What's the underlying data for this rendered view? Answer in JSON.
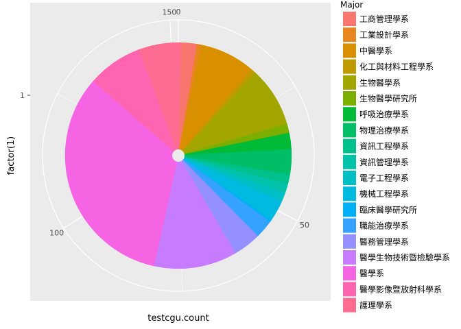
{
  "chart_data": {
    "type": "pie",
    "coord": "polar",
    "xlabel": "testcgu.count",
    "ylabel": "factor(1)",
    "y_tick": "1",
    "theta_ticks": [
      {
        "value": 0,
        "label": "0"
      },
      {
        "value": 50,
        "label": "50"
      },
      {
        "value": 100,
        "label": "100"
      },
      {
        "value": 150,
        "label": "150"
      }
    ],
    "theta_max": 151.5,
    "grid": true,
    "legend_position": "right",
    "legend_title": "Major",
    "slices": [
      {
        "name": "工商管理學系",
        "value": 4,
        "color": "#F8766D"
      },
      {
        "name": "工業設計學系",
        "value": 1,
        "color": "#E7851E"
      },
      {
        "name": "中醫學系",
        "value": 12,
        "color": "#D89000"
      },
      {
        "name": "化工與材料工程學系",
        "value": 1,
        "color": "#C09B00"
      },
      {
        "name": "生物醫學系",
        "value": 13,
        "color": "#A3A500"
      },
      {
        "name": "生物醫學研究所",
        "value": 2,
        "color": "#7CAE00"
      },
      {
        "name": "呼吸治療學系",
        "value": 3.5,
        "color": "#00BA38"
      },
      {
        "name": "物理治療學系",
        "value": 5.5,
        "color": "#00BE67"
      },
      {
        "name": "資訊工程學系",
        "value": 2,
        "color": "#00C08B"
      },
      {
        "name": "資訊管理學系",
        "value": 2,
        "color": "#00C1A9"
      },
      {
        "name": "電子工程學系",
        "value": 2,
        "color": "#00BFC4"
      },
      {
        "name": "機械工程學系",
        "value": 4.5,
        "color": "#00BAE0"
      },
      {
        "name": "臨床醫學研究所",
        "value": 0.5,
        "color": "#00B0F6"
      },
      {
        "name": "職能治療學系",
        "value": 4,
        "color": "#35A2FF"
      },
      {
        "name": "醫務管理學系",
        "value": 6,
        "color": "#9590FF"
      },
      {
        "name": "醫學生物技術暨檢驗學系",
        "value": 18,
        "color": "#C77CFF"
      },
      {
        "name": "醫學系",
        "value": 50,
        "color": "#F564E3"
      },
      {
        "name": "醫學影像暨放射科學系",
        "value": 12,
        "color": "#FF64B0"
      },
      {
        "name": "護理學系",
        "value": 9,
        "color": "#FF6C91"
      }
    ]
  }
}
